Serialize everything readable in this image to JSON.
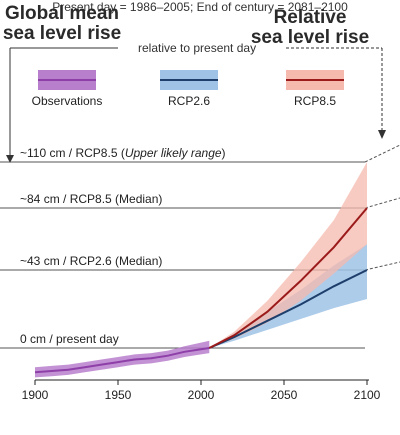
{
  "header": {
    "left_title_line1": "Global mean",
    "left_title_line2": "sea level rise",
    "right_title_line1": "Relative",
    "right_title_line2": "sea level rise",
    "relative_note": "relative to present day"
  },
  "footer_note": "Present day = 1986–2005; End of century = 2081–2100",
  "colors": {
    "observations": "#8e3fa8",
    "observations_band": "#b77fcc",
    "rcp26_line": "#1e3e6b",
    "rcp26_band": "#9fc3e6",
    "rcp85_line": "#9b1b1b",
    "rcp85_band": "#f5b9ae"
  },
  "legend": [
    {
      "label": "Observations",
      "key": "observations"
    },
    {
      "label": "RCP2.6",
      "key": "rcp26"
    },
    {
      "label": "RCP8.5",
      "key": "rcp85"
    }
  ],
  "reference_lines": [
    {
      "label": "~110 cm / RCP8.5 (",
      "italic": "Upper likely range",
      "suffix": ")",
      "value": 110
    },
    {
      "label": "~84  cm / RCP8.5 (Median)",
      "italic": "",
      "suffix": "",
      "value": 84
    },
    {
      "label": "~43 cm / RCP2.6 (Median)",
      "italic": "",
      "suffix": "",
      "value": 43
    },
    {
      "label": "0 cm / present day",
      "italic": "",
      "suffix": "",
      "value": 0
    }
  ],
  "chart_data": {
    "type": "line",
    "xlabel": "",
    "ylabel": "",
    "xlim": [
      1900,
      2100
    ],
    "ylim": [
      -25,
      120
    ],
    "xticks": [
      1900,
      1950,
      2000,
      2050,
      2100
    ],
    "grid": false,
    "legend_position": "top",
    "series": [
      {
        "name": "Observations",
        "key": "observations",
        "x": [
          1900,
          1910,
          1920,
          1930,
          1940,
          1950,
          1960,
          1970,
          1980,
          1990,
          2000,
          2005
        ],
        "y": [
          -19,
          -18,
          -17,
          -15,
          -13,
          -11,
          -9,
          -8,
          -6,
          -3,
          -1,
          0
        ],
        "band_halfwidth": 4
      },
      {
        "name": "RCP2.6",
        "key": "rcp26",
        "x": [
          2005,
          2020,
          2040,
          2060,
          2080,
          2100
        ],
        "y": [
          0,
          6,
          15,
          24,
          34,
          43
        ],
        "lower": [
          0,
          4,
          10,
          16,
          22,
          27
        ],
        "upper": [
          0,
          8,
          20,
          32,
          46,
          60
        ]
      },
      {
        "name": "RCP8.5",
        "key": "rcp85",
        "x": [
          2005,
          2020,
          2040,
          2060,
          2080,
          2100
        ],
        "y": [
          0,
          7,
          20,
          37,
          58,
          84
        ],
        "lower": [
          0,
          5,
          14,
          26,
          41,
          60
        ],
        "upper": [
          0,
          9,
          26,
          48,
          76,
          110
        ]
      }
    ]
  }
}
